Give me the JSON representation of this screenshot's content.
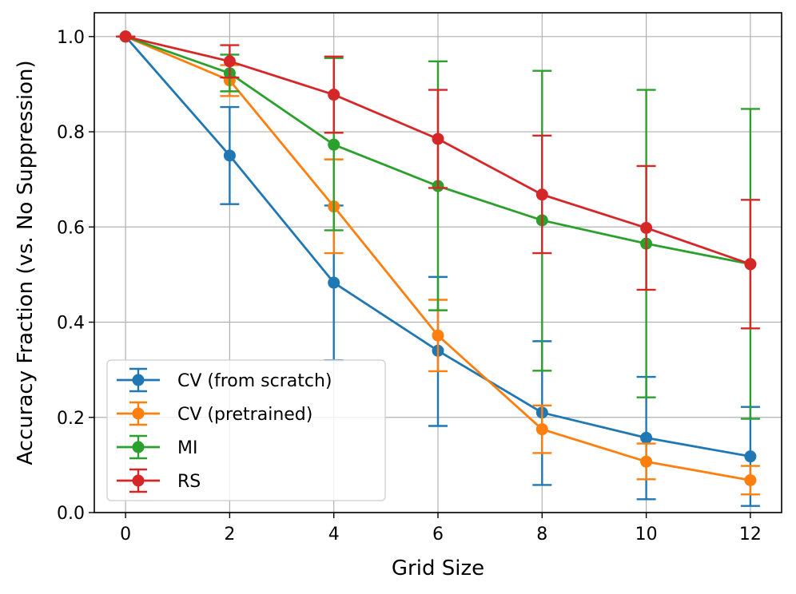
{
  "chart_data": {
    "type": "line",
    "title": "",
    "xlabel": "Grid Size",
    "ylabel": "Accuracy Fraction (vs. No Suppression)",
    "x": [
      0,
      2,
      4,
      6,
      8,
      10,
      12
    ],
    "xlim": [
      -0.6,
      12.6
    ],
    "ylim": [
      0.0,
      1.05
    ],
    "xticks": [
      0,
      2,
      4,
      6,
      8,
      10,
      12
    ],
    "yticks": [
      0.0,
      0.2,
      0.4,
      0.6,
      0.8,
      1.0
    ],
    "xtick_labels": [
      "0",
      "2",
      "4",
      "6",
      "8",
      "10",
      "12"
    ],
    "ytick_labels": [
      "0.0",
      "0.2",
      "0.4",
      "0.6",
      "0.8",
      "1.0"
    ],
    "grid": true,
    "legend_position": "lower-left",
    "series": [
      {
        "name": "CV (from scratch)",
        "color": "#1f77b4",
        "values": [
          1.0,
          0.75,
          0.483,
          0.34,
          0.21,
          0.157,
          0.118
        ],
        "err_low": [
          1.0,
          0.648,
          0.32,
          0.182,
          0.058,
          0.028,
          0.014
        ],
        "err_high": [
          1.0,
          0.852,
          0.645,
          0.495,
          0.36,
          0.285,
          0.222
        ]
      },
      {
        "name": "CV (pretrained)",
        "color": "#ff7f0e",
        "values": [
          1.0,
          0.908,
          0.643,
          0.372,
          0.175,
          0.107,
          0.068
        ],
        "err_low": [
          1.0,
          0.875,
          0.545,
          0.297,
          0.125,
          0.07,
          0.038
        ],
        "err_high": [
          1.0,
          0.94,
          0.742,
          0.447,
          0.225,
          0.145,
          0.098
        ]
      },
      {
        "name": "MI",
        "color": "#2ca02c",
        "values": [
          1.0,
          0.923,
          0.773,
          0.686,
          0.614,
          0.565,
          0.522
        ],
        "err_low": [
          1.0,
          0.885,
          0.593,
          0.425,
          0.298,
          0.242,
          0.197
        ],
        "err_high": [
          1.0,
          0.962,
          0.955,
          0.948,
          0.928,
          0.888,
          0.848
        ]
      },
      {
        "name": "RS",
        "color": "#d62728",
        "values": [
          1.0,
          0.948,
          0.878,
          0.785,
          0.668,
          0.598,
          0.522
        ],
        "err_low": [
          1.0,
          0.914,
          0.798,
          0.682,
          0.545,
          0.468,
          0.387
        ],
        "err_high": [
          1.0,
          0.982,
          0.958,
          0.888,
          0.792,
          0.728,
          0.657
        ]
      }
    ]
  }
}
